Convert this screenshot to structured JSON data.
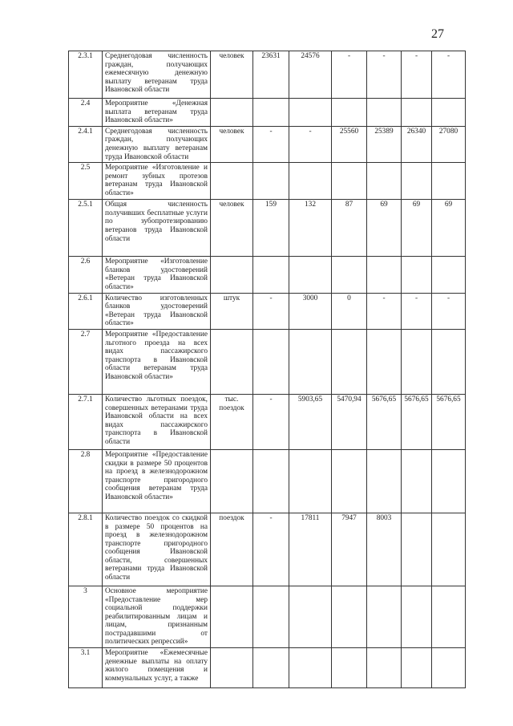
{
  "page_number": "27",
  "rows": [
    {
      "num": "2.3.1",
      "desc": "Среднегодовая численность граждан, получающих ежемесячную денежную выплату ветеранам труда Ивановской области",
      "unit": "человек",
      "values": [
        "23631",
        "24576",
        "-",
        "-",
        "-",
        "-"
      ]
    },
    {
      "num": "2.4",
      "desc": "Мероприятие «Денежная выплата ветеранам труда Ивановской области»",
      "unit": "",
      "values": [
        "",
        "",
        "",
        "",
        "",
        ""
      ]
    },
    {
      "num": "2.4.1",
      "desc": "Среднегодовая численность граждан, получающих денежную выплату ветеранам труда Ивановской области",
      "unit": "человек",
      "values": [
        "-",
        "-",
        "25560",
        "25389",
        "26340",
        "27080"
      ]
    },
    {
      "num": "2.5",
      "desc": "Мероприятие «Изготовление и ремонт зубных протезов ветеранам труда Ивановской области»",
      "unit": "",
      "values": [
        "",
        "",
        "",
        "",
        "",
        ""
      ]
    },
    {
      "num": "2.5.1",
      "desc": "Общая численность получивших бесплатные услуги по зубопротезированию ветеранов труда Ивановской области",
      "unit": "человек",
      "values": [
        "159",
        "132",
        "87",
        "69",
        "69",
        "69"
      ]
    },
    {
      "num": "2.6",
      "desc": "Мероприятие «Изготовление бланков удостоверений «Ветеран труда Ивановской области»",
      "unit": "",
      "values": [
        "",
        "",
        "",
        "",
        "",
        ""
      ]
    },
    {
      "num": "2.6.1",
      "desc": "Количество изготовленных бланков удостоверений «Ветеран труда Ивановской области»",
      "unit": "штук",
      "values": [
        "-",
        "3000",
        "0",
        "-",
        "-",
        "-"
      ]
    },
    {
      "num": "2.7",
      "desc": "Мероприятие «Предоставление льготного проезда на всех видах пассажирского транспорта в Ивановской области ветеранам труда Ивановской области»",
      "unit": "",
      "values": [
        "",
        "",
        "",
        "",
        "",
        ""
      ]
    },
    {
      "num": "2.7.1",
      "desc": "Количество льготных поездок, совершенных ветеранами труда Ивановской области на всех видах пассажирского транспорта в Ивановской области",
      "unit": "тыс. поездок",
      "values": [
        "-",
        "5903,65",
        "5470,94",
        "5676,65",
        "5676,65",
        "5676,65"
      ]
    },
    {
      "num": "2.8",
      "desc": "Мероприятие «Предоставление скидки в размере 50 процентов на проезд в железнодорожном транспорте пригородного сообщения ветеранам труда Ивановской области»",
      "unit": "",
      "values": [
        "",
        "",
        "",
        "",
        "",
        ""
      ]
    },
    {
      "num": "2.8.1",
      "desc": "Количество поездок со скидкой в размере 50 процентов на проезд в железнодорожном транспорте пригородного сообщения Ивановской области, совершенных ветеранами труда Ивановской области",
      "unit": "поездок",
      "values": [
        "-",
        "17811",
        "7947",
        "8003",
        "",
        ""
      ]
    },
    {
      "num": "3",
      "desc": "Основное мероприятие «Предоставление мер социальной поддержки реабилитированным лицам и лицам, признанным пострадавшими от политических репрессий»",
      "unit": "",
      "values": [
        "",
        "",
        "",
        "",
        "",
        ""
      ]
    },
    {
      "num": "3.1",
      "desc": "Мероприятие «Ежемесячные денежные выплаты на оплату жилого помещения и коммунальных услуг, а также",
      "unit": "",
      "values": [
        "",
        "",
        "",
        "",
        "",
        ""
      ]
    }
  ]
}
